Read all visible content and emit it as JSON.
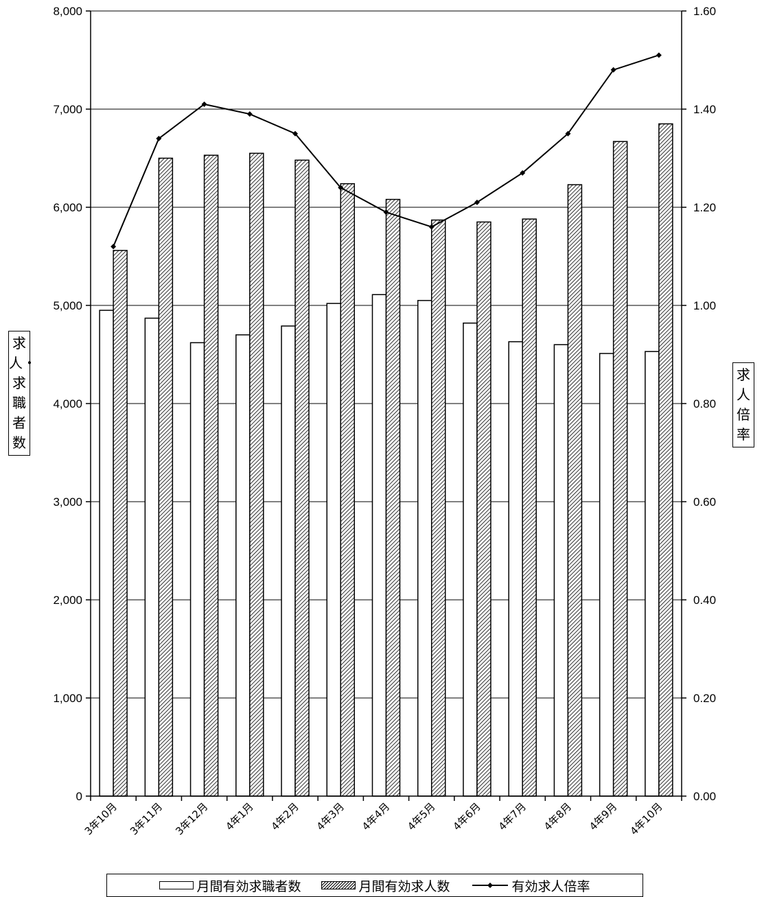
{
  "chart_data": {
    "type": "bar",
    "categories": [
      "3年10月",
      "3年11月",
      "3年12月",
      "4年1月",
      "4年2月",
      "4年3月",
      "4年4月",
      "4年5月",
      "4年6月",
      "4年7月",
      "4年8月",
      "4年9月",
      "4年10月"
    ],
    "series": [
      {
        "name": "月間有効求職者数",
        "type": "bar",
        "axis": "left",
        "values": [
          4950,
          4870,
          4620,
          4700,
          4790,
          5020,
          5110,
          5050,
          4820,
          4630,
          4600,
          4510,
          4530
        ]
      },
      {
        "name": "月間有効求人数",
        "type": "bar",
        "axis": "left",
        "pattern": "hatch",
        "values": [
          5560,
          6500,
          6530,
          6550,
          6480,
          6240,
          6080,
          5870,
          5850,
          5880,
          6230,
          6670,
          6850
        ]
      },
      {
        "name": "有効求人倍率",
        "type": "line",
        "axis": "right",
        "marker": "diamond",
        "values": [
          1.12,
          1.34,
          1.41,
          1.39,
          1.35,
          1.24,
          1.19,
          1.16,
          1.21,
          1.27,
          1.35,
          1.48,
          1.51
        ]
      }
    ],
    "ylabel": "求人・求職者数",
    "y2label": "求人倍率",
    "ylim": [
      0,
      8000
    ],
    "y2lim": [
      0,
      1.6
    ],
    "yticks": [
      "0",
      "1,000",
      "2,000",
      "3,000",
      "4,000",
      "5,000",
      "6,000",
      "7,000",
      "8,000"
    ],
    "y2ticks": [
      "0.00",
      "0.20",
      "0.40",
      "0.60",
      "0.80",
      "1.00",
      "1.20",
      "1.40",
      "1.60"
    ],
    "grid": true,
    "legend_position": "bottom"
  }
}
